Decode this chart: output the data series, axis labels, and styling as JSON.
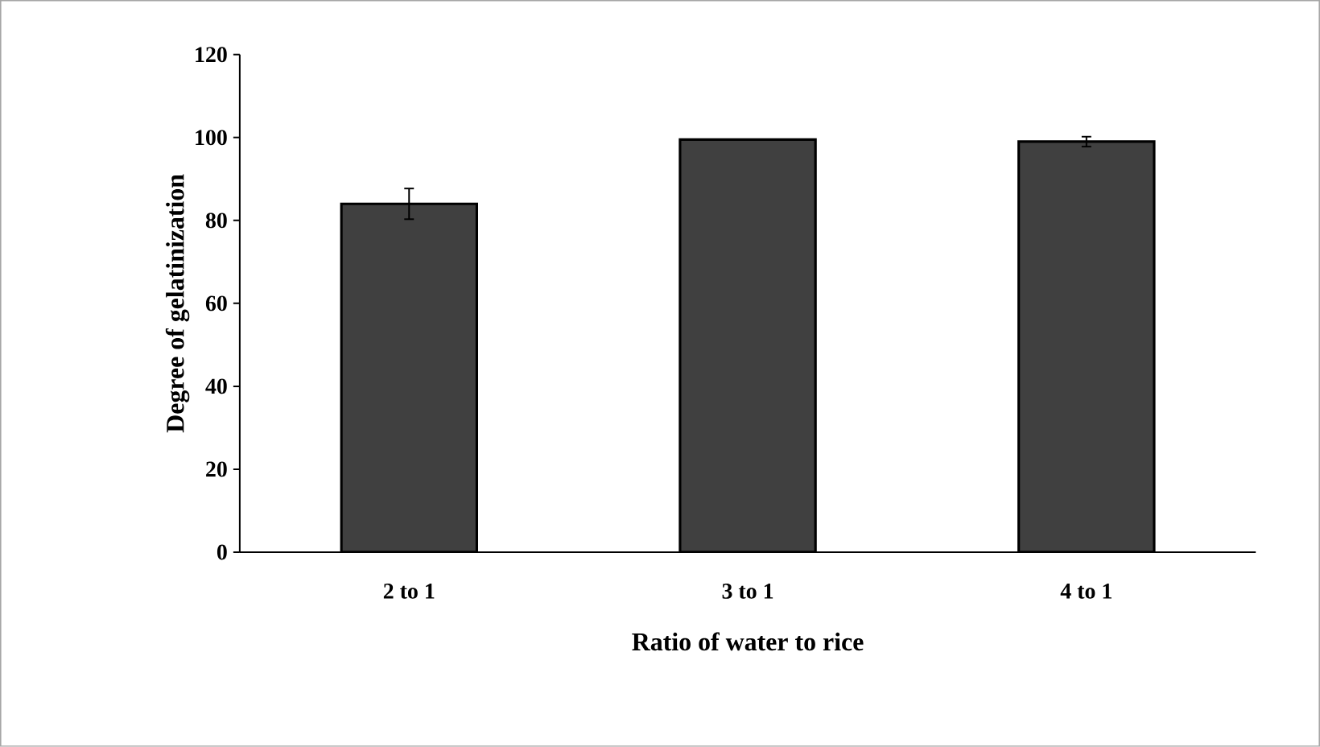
{
  "chart_data": {
    "type": "bar",
    "xlabel": "Ratio of water to rice",
    "ylabel": "Degree of gelatinization",
    "categories": [
      "2 to 1",
      "3 to 1",
      "4 to 1"
    ],
    "values": [
      84,
      99.5,
      99
    ],
    "errors": [
      3.7,
      null,
      1.2
    ],
    "color": "#404040",
    "ylim": [
      0,
      120
    ],
    "yticks": [
      0,
      20,
      40,
      60,
      80,
      100,
      120
    ],
    "grid": false
  }
}
